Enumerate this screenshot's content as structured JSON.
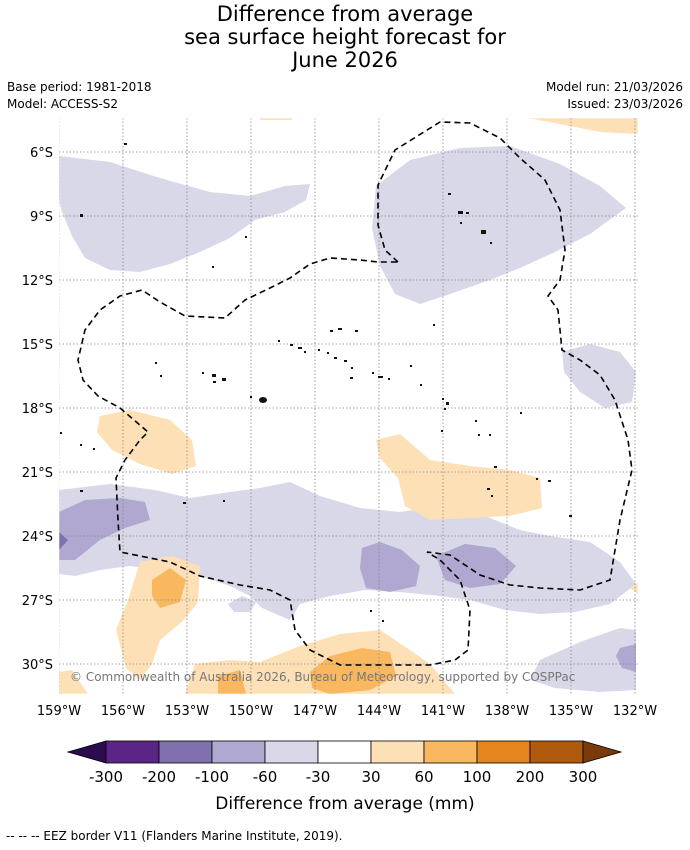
{
  "title": {
    "line1": "Difference from average",
    "line2": "sea surface height forecast for",
    "line3": "June 2026"
  },
  "meta": {
    "base_period": "Base period: 1981-2018",
    "model": "Model: ACCESS-S2",
    "model_run": "Model run: 21/03/2026",
    "issued": "Issued: 23/03/2026"
  },
  "map": {
    "lat_labels": [
      "6°S",
      "9°S",
      "12°S",
      "15°S",
      "18°S",
      "21°S",
      "24°S",
      "27°S",
      "30°S"
    ],
    "lon_labels": [
      "159°W",
      "156°W",
      "153°W",
      "150°W",
      "147°W",
      "144°W",
      "141°W",
      "138°W",
      "135°W",
      "132°W"
    ],
    "copyright": "© Commonwealth of Australia 2026, Bureau of Meteorology, supported by COSPPac"
  },
  "colorbar": {
    "ticks": [
      "-300",
      "-200",
      "-100",
      "-60",
      "-30",
      "30",
      "60",
      "100",
      "200",
      "300"
    ],
    "label": "Difference from average (mm)",
    "colors": {
      "below": "#2d0b4f",
      "bins": [
        "#5a2586",
        "#8070ad",
        "#b0a8d0",
        "#d8d8e8",
        "#ffffff",
        "#fde0b6",
        "#f9b860",
        "#e4851e",
        "#b05a0e"
      ],
      "above": "#7a3a0a"
    }
  },
  "footer": "--  --  -- EEZ border V11 (Flanders Marine Institute, 2019)."
}
